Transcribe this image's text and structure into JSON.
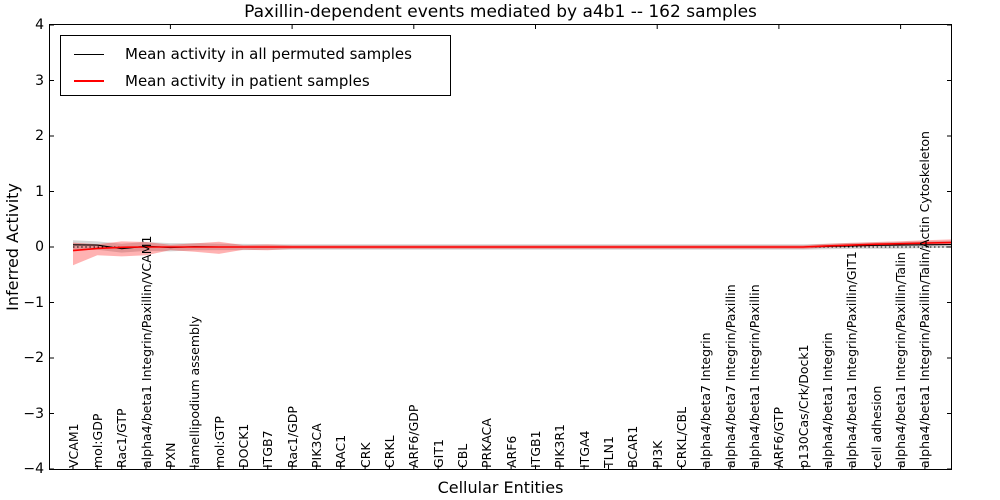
{
  "chart_data": {
    "type": "line",
    "title": "Paxillin-dependent events mediated by a4b1 -- 162 samples",
    "xlabel": "Cellular Entities",
    "ylabel": "Inferred Activity",
    "ylim": [
      -4,
      4
    ],
    "yticks": [
      "4",
      "3",
      "2",
      "1",
      "0",
      "−1",
      "−2",
      "−3",
      "−4"
    ],
    "legend_position": "upper left",
    "grid": false,
    "zero_line": {
      "y": 0,
      "style": "dotted",
      "color": "#000000"
    },
    "categories": [
      "VCAM1",
      "mol:GDP",
      "Rac1/GTP",
      "alpha4/beta1 Integrin/Paxillin/VCAM1",
      "PXN",
      "lamellipodium assembly",
      "mol:GTP",
      "DOCK1",
      "ITGB7",
      "Rac1/GDP",
      "PIK3CA",
      "RAC1",
      "CRK",
      "CRKL",
      "ARF6/GDP",
      "GIT1",
      "CBL",
      "PRKACA",
      "ARF6",
      "ITGB1",
      "PIK3R1",
      "ITGA4",
      "TLN1",
      "BCAR1",
      "PI3K",
      "CRKL/CBL",
      "alpha4/beta7 Integrin",
      "alpha4/beta7 Integrin/Paxillin",
      "alpha4/beta1 Integrin/Paxillin",
      "ARF6/GTP",
      "p130Cas/Crk/Dock1",
      "alpha4/beta1 Integrin",
      "alpha4/beta1 Integrin/Paxillin/GIT1",
      "cell adhesion",
      "alpha4/beta1 Integrin/Paxillin/Talin",
      "alpha4/beta1 Integrin/Paxillin/Talin/Actin Cytoskeleton"
    ],
    "series": [
      {
        "name": "Mean activity in all permuted samples",
        "color": "#000000",
        "band_color": "rgba(120,120,120,0.30)",
        "values": [
          0.04,
          0.035,
          -0.03,
          0.015,
          -0.01,
          0.005,
          0,
          0,
          0,
          0,
          0,
          0,
          0,
          0,
          0,
          0,
          0,
          0,
          0,
          0,
          0,
          0,
          0,
          0,
          0,
          0,
          0,
          0,
          0,
          0,
          0,
          0.01,
          0.02,
          0.03,
          0.035,
          0.04
        ],
        "band_upper": [
          0.12,
          0.1,
          0.06,
          0.09,
          0.07,
          0.07,
          0.06,
          0.055,
          0.05,
          0.05,
          0.05,
          0.05,
          0.05,
          0.05,
          0.05,
          0.05,
          0.05,
          0.05,
          0.05,
          0.05,
          0.05,
          0.05,
          0.05,
          0.05,
          0.05,
          0.05,
          0.05,
          0.05,
          0.05,
          0.05,
          0.05,
          0.06,
          0.07,
          0.08,
          0.09,
          0.1
        ],
        "band_lower": [
          -0.06,
          -0.05,
          -0.1,
          -0.07,
          -0.08,
          -0.06,
          -0.055,
          -0.055,
          -0.05,
          -0.05,
          -0.05,
          -0.05,
          -0.05,
          -0.05,
          -0.05,
          -0.05,
          -0.05,
          -0.05,
          -0.05,
          -0.05,
          -0.05,
          -0.05,
          -0.05,
          -0.05,
          -0.05,
          -0.05,
          -0.05,
          -0.05,
          -0.05,
          -0.05,
          -0.05,
          -0.04,
          -0.035,
          -0.03,
          -0.03,
          -0.02
        ]
      },
      {
        "name": "Mean activity in patient samples",
        "color": "#ff0000",
        "band_color": "rgba(255,0,0,0.30)",
        "values": [
          -0.065,
          -0.025,
          -0.005,
          0,
          0,
          0,
          0,
          0,
          0,
          0,
          0,
          0,
          0,
          0,
          0,
          0,
          0,
          0,
          0,
          0,
          0,
          0,
          0,
          0,
          0,
          0,
          0,
          0,
          0,
          0,
          0,
          0.02,
          0.035,
          0.05,
          0.06,
          0.07
        ],
        "band_upper": [
          0.08,
          0.05,
          0.1,
          0.09,
          0.04,
          0.065,
          0.095,
          0.035,
          0.045,
          0.03,
          0.03,
          0.03,
          0.03,
          0.03,
          0.03,
          0.03,
          0.03,
          0.03,
          0.03,
          0.03,
          0.03,
          0.03,
          0.03,
          0.03,
          0.03,
          0.03,
          0.03,
          0.03,
          0.03,
          0.03,
          0.03,
          0.06,
          0.075,
          0.09,
          0.105,
          0.12
        ],
        "band_lower": [
          -0.33,
          -0.15,
          -0.17,
          -0.15,
          -0.055,
          -0.085,
          -0.125,
          -0.05,
          -0.06,
          -0.035,
          -0.035,
          -0.035,
          -0.035,
          -0.035,
          -0.035,
          -0.035,
          -0.035,
          -0.035,
          -0.035,
          -0.035,
          -0.035,
          -0.035,
          -0.035,
          -0.035,
          -0.035,
          -0.035,
          -0.035,
          -0.035,
          -0.035,
          -0.035,
          -0.035,
          -0.01,
          0.005,
          0.015,
          0.025,
          0.03
        ]
      }
    ]
  }
}
